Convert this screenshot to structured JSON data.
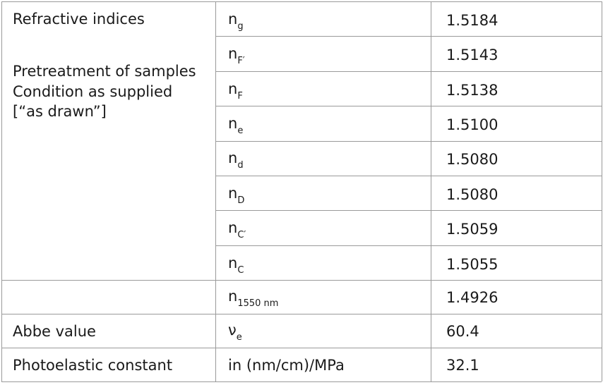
{
  "refractive": {
    "title": "Refractive indices",
    "notes": [
      "Pretreatment of samples",
      "Condition as supplied",
      "[“as drawn”]"
    ],
    "rows": [
      {
        "symbol": "n",
        "sub": "g",
        "value": "1.5184"
      },
      {
        "symbol": "n",
        "sub": "F′",
        "value": "1.5143"
      },
      {
        "symbol": "n",
        "sub": "F",
        "value": "1.5138"
      },
      {
        "symbol": "n",
        "sub": "e",
        "value": "1.5100"
      },
      {
        "symbol": "n",
        "sub": "d",
        "value": "1.5080"
      },
      {
        "symbol": "n",
        "sub": "D",
        "value": "1.5080"
      },
      {
        "symbol": "n",
        "sub": "C′",
        "value": "1.5059"
      },
      {
        "symbol": "n",
        "sub": "C",
        "value": "1.5055"
      }
    ]
  },
  "other_rows": [
    {
      "symbol": "n",
      "sub": "1550 nm",
      "value": "1.4926"
    },
    {
      "label": "Abbe value",
      "symbol": "ν",
      "sub": "e",
      "value": "60.4"
    },
    {
      "label": "Photoelastic constant",
      "symbol": "in (nm/cm)/MPa",
      "value": "32.1"
    }
  ]
}
